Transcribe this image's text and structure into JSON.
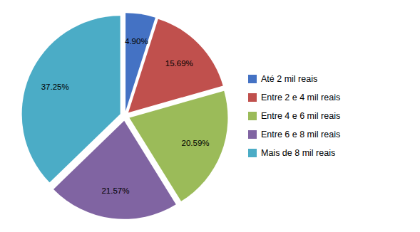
{
  "chart_data": {
    "type": "pie",
    "categories": [
      "Até 2 mil reais",
      "Entre 2 e 4 mil reais",
      "Entre 4 e 6 mil reais",
      "Entre 6 e 8 mil reais",
      "Mais de 8 mil reais"
    ],
    "values": [
      4.9,
      15.69,
      20.59,
      21.57,
      37.25
    ],
    "value_labels": [
      "4.90%",
      "15.69%",
      "20.59%",
      "21.57%",
      "37.25%"
    ],
    "colors": [
      "#4472C4",
      "#C0504D",
      "#9BBB59",
      "#8064A2",
      "#4BACC6"
    ],
    "data_labels": true,
    "legend": "right"
  }
}
